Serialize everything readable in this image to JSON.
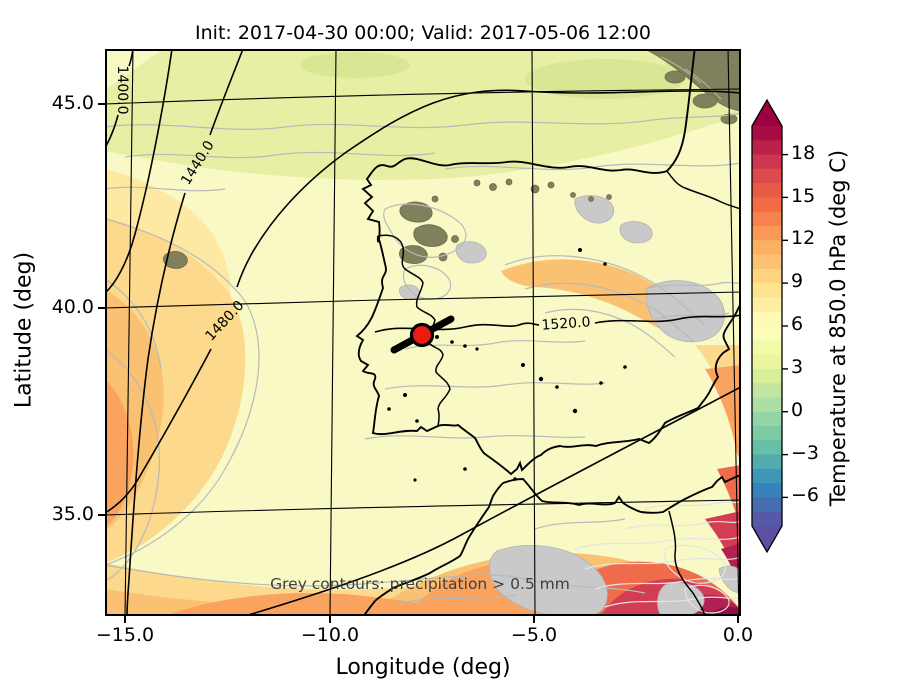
{
  "title": "Init: 2017-04-30 00:00; Valid: 2017-05-06 12:00",
  "xaxis": {
    "label": "Longitude (deg)",
    "ticks": [
      "−15.0",
      "−10.0",
      "−5.0",
      "0.0"
    ]
  },
  "yaxis": {
    "label": "Latitude (deg)",
    "ticks": [
      "45.0",
      "40.0",
      "35.0"
    ]
  },
  "colorbar": {
    "label": "Temperature at 850.0 hPa (deg C)",
    "ticks": [
      "18",
      "15",
      "12",
      "9",
      "6",
      "3",
      "0",
      "−3",
      "−6"
    ],
    "arrow_top": "#9e0142",
    "arrow_bottom": "#5e4fa2",
    "segments": [
      "#a80c44",
      "#bc2249",
      "#cf374e",
      "#dd4a4c",
      "#e85b48",
      "#f36b44",
      "#f7824d",
      "#fa9957",
      "#fdb063",
      "#fdc271",
      "#fed481",
      "#fee391",
      "#feeea3",
      "#fff9b6",
      "#fbfdb8",
      "#f2faaa",
      "#e9f69c",
      "#d7ef9b",
      "#c2e69f",
      "#addea4",
      "#95d4a4",
      "#7ccba5",
      "#64c0a6",
      "#52abae",
      "#3f97b7",
      "#3782ba",
      "#466eb1",
      "#5659a7"
    ]
  },
  "contours": {
    "labels": [
      {
        "text": "1400.0"
      },
      {
        "text": "1440.0"
      },
      {
        "text": "1480.0"
      },
      {
        "text": "1520.0"
      }
    ]
  },
  "annotation": "Grey contours: precipitation > 0.5 mm",
  "marker": {
    "color": "#ed1c0f"
  },
  "chart_data": {
    "type": "heatmap",
    "title": "Init: 2017-04-30 00:00; Valid: 2017-05-06 12:00",
    "xlabel": "Longitude (deg)",
    "ylabel": "Latitude (deg)",
    "xlim": [
      -15.5,
      0.1
    ],
    "ylim": [
      32.5,
      46.3
    ],
    "xticks": [
      -15.0,
      -10.0,
      -5.0,
      0.0
    ],
    "yticks": [
      35.0,
      40.0,
      45.0
    ],
    "field": "Temperature at 850.0 hPa (deg C)",
    "colorbar_ticks": [
      18,
      15,
      12,
      9,
      6,
      3,
      0,
      -3,
      -6
    ],
    "colorbar_range": [
      -8,
      20
    ],
    "colormap": "Spectral_r",
    "colorbar_extend": "both",
    "geopotential_contour_labels_m": [
      1400.0,
      1440.0,
      1480.0,
      1520.0
    ],
    "precipitation_contour_threshold_mm": 0.5,
    "station_marker": {
      "lon": -7.8,
      "lat": 39.4
    },
    "legend_position": "right",
    "grid": "lat-lon graticule"
  }
}
